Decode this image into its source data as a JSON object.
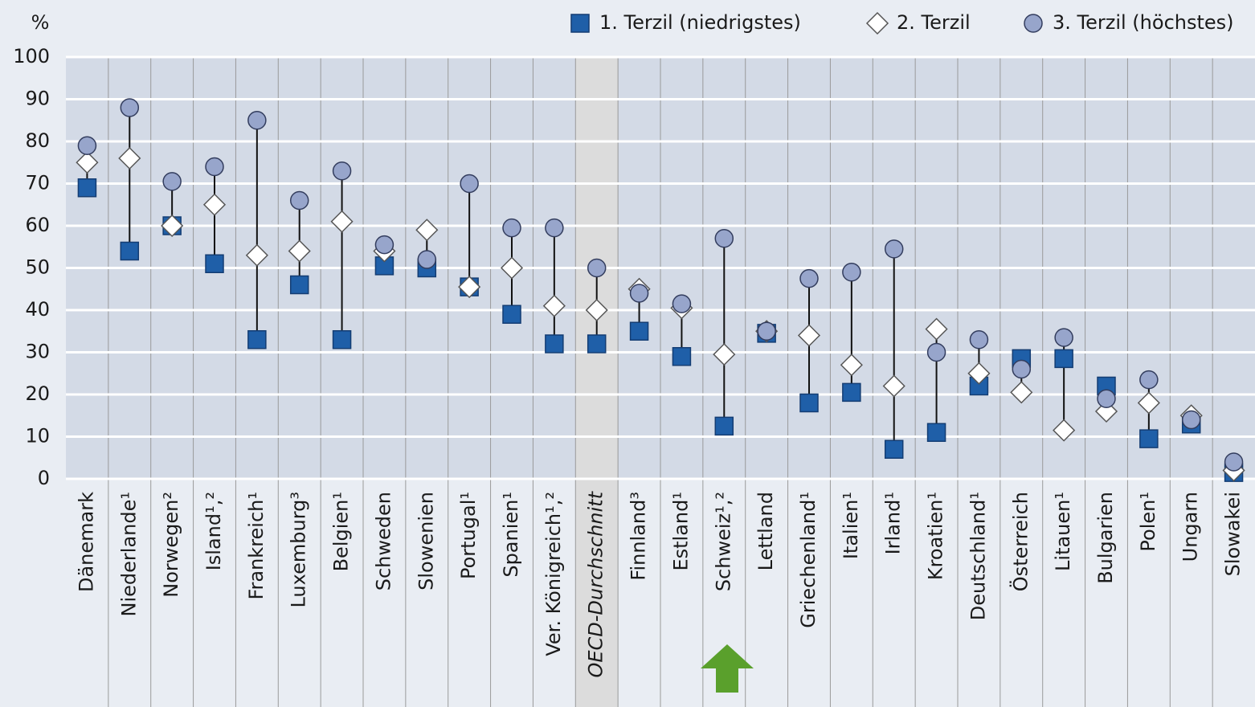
{
  "chart_data": {
    "type": "dot_range",
    "y_label": "%",
    "categories": [
      "Dänemark",
      "Niederlande¹",
      "Norwegen²",
      "Island¹,²",
      "Frankreich¹",
      "Luxemburg³",
      "Belgien¹",
      "Schweden",
      "Slowenien",
      "Portugal¹",
      "Spanien¹",
      "Ver. Königreich¹,²",
      "OECD-Durchschnitt",
      "Finnland³",
      "Estland¹",
      "Schweiz¹,²",
      "Lettland",
      "Griechenland¹",
      "Italien¹",
      "Irland¹",
      "Kroatien¹",
      "Deutschland¹",
      "Österreich",
      "Litauen¹",
      "Bulgarien",
      "Polen¹",
      "Ungarn",
      "Slowakei"
    ],
    "series": [
      {
        "name": "1. Terzil (niedrigstes)",
        "marker": "square",
        "color": "#1f5fa8",
        "values": [
          69,
          54,
          60,
          51,
          33,
          46,
          33,
          50.5,
          50,
          45.5,
          39,
          32,
          32,
          35,
          29,
          12.5,
          34.5,
          18,
          20.5,
          7,
          11,
          22,
          28.5,
          28.5,
          22,
          9.5,
          13,
          1.5
        ]
      },
      {
        "name": "2. Terzil",
        "marker": "diamond",
        "color": "#ffffff",
        "values": [
          75,
          76,
          60,
          65,
          53,
          54,
          61,
          54,
          59,
          45.5,
          50,
          41,
          40,
          45,
          40.5,
          29.5,
          35,
          34,
          27,
          22,
          35.5,
          25,
          20.5,
          11.5,
          16,
          18,
          15,
          2
        ]
      },
      {
        "name": "3. Terzil (höchstes)",
        "marker": "circle",
        "color": "#97a5cb",
        "values": [
          79,
          88,
          70.5,
          74,
          85,
          66,
          73,
          55.5,
          52,
          70,
          59.5,
          59.5,
          50,
          44,
          41.5,
          57,
          35,
          47.5,
          49,
          54.5,
          30,
          33,
          26,
          33.5,
          19,
          23.5,
          14,
          4
        ]
      }
    ],
    "highlight_index": 12,
    "ylim": [
      0,
      100
    ],
    "yticks": [
      0,
      10,
      20,
      30,
      40,
      50,
      60,
      70,
      80,
      90,
      100
    ],
    "grid": true
  }
}
